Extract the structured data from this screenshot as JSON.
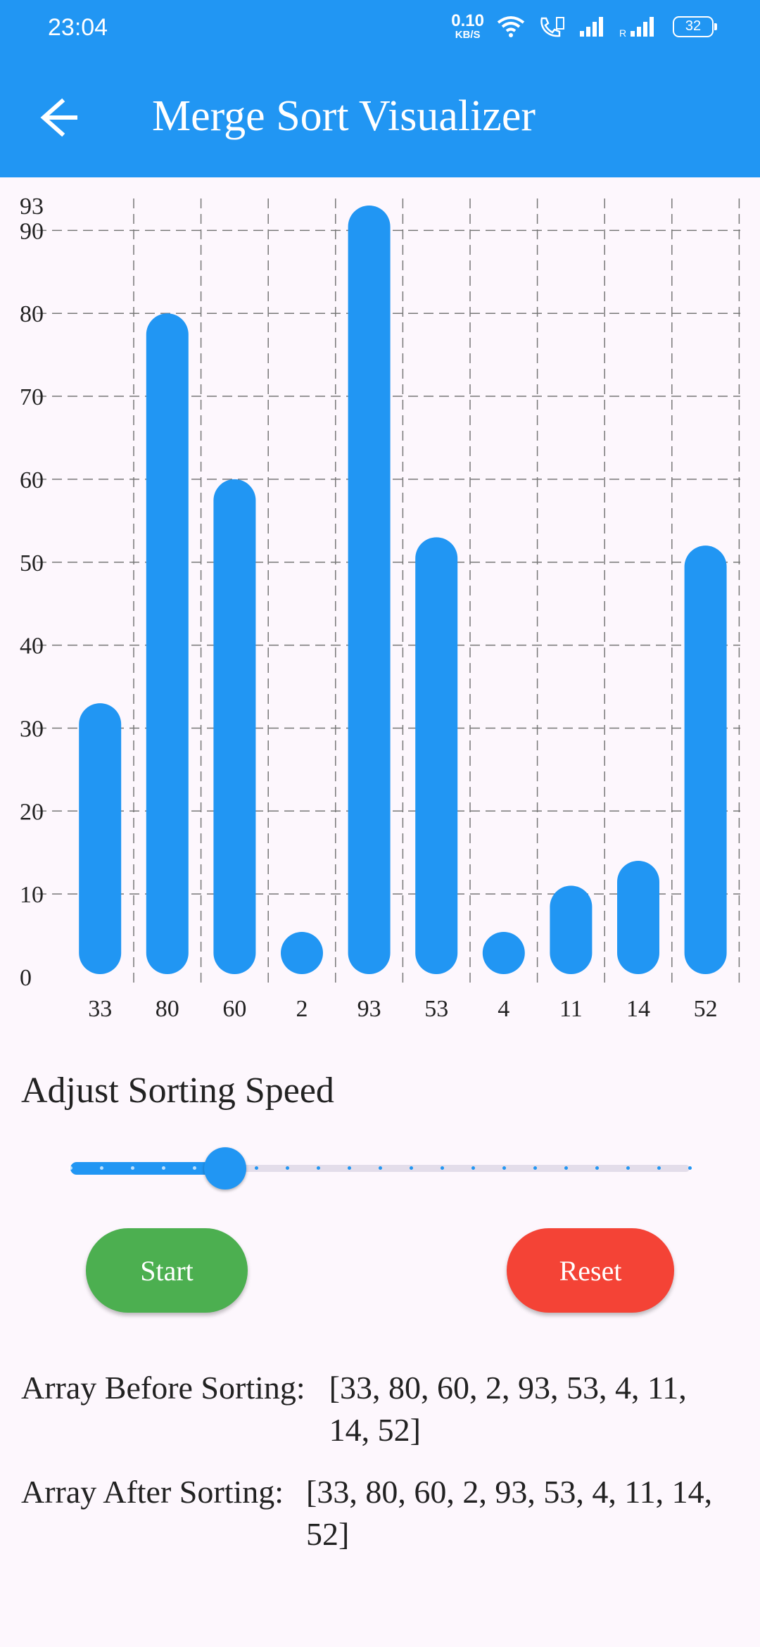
{
  "status_bar": {
    "time": "23:04",
    "net_speed_value": "0.10",
    "net_speed_unit": "KB/S",
    "battery": "32",
    "icons": [
      "wifi-icon",
      "volte-call-icon",
      "signal-icon",
      "roaming-signal-icon",
      "battery-icon"
    ]
  },
  "app_bar": {
    "title": "Merge Sort Visualizer",
    "back_icon": "arrow-back-icon"
  },
  "chart_data": {
    "type": "bar",
    "categories": [
      "33",
      "80",
      "60",
      "2",
      "93",
      "53",
      "4",
      "11",
      "14",
      "52"
    ],
    "values": [
      33,
      80,
      60,
      2,
      93,
      53,
      4,
      11,
      14,
      52
    ],
    "ylim": [
      0,
      93
    ],
    "yticks": [
      0,
      10,
      20,
      30,
      40,
      50,
      60,
      70,
      80,
      90,
      93
    ],
    "grid": true,
    "bar_color": "#2196f3"
  },
  "speed": {
    "label": "Adjust Sorting Speed",
    "min": 0,
    "max": 20,
    "value": 5,
    "divisions": 20
  },
  "buttons": {
    "start_label": "Start",
    "reset_label": "Reset",
    "start_color": "#4caf50",
    "reset_color": "#f44336"
  },
  "arrays": {
    "before_label": "Array Before Sorting:",
    "before_value": "[33, 80, 60, 2, 93, 53, 4, 11, 14, 52]",
    "after_label": "Array After Sorting:",
    "after_value": "[33, 80, 60, 2, 93, 53, 4, 11, 14, 52]"
  },
  "colors": {
    "primary": "#2196f3",
    "background": "#fdf7fd"
  }
}
